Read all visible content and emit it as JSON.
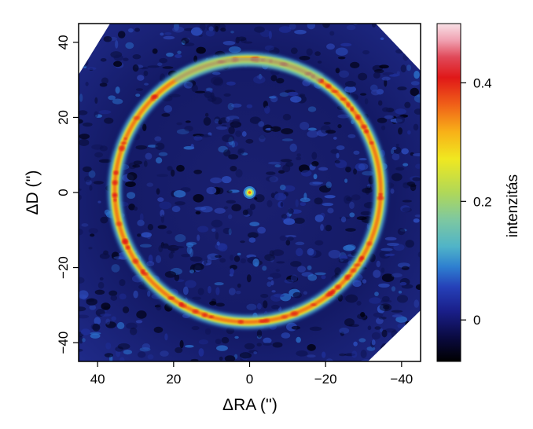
{
  "chart_data": {
    "type": "heatmap",
    "title": "",
    "xlabel": "ΔRA ('')",
    "ylabel": "ΔD ('')",
    "xlim": [
      45,
      -45
    ],
    "ylim": [
      -45,
      45
    ],
    "x_ticks": [
      40,
      20,
      0,
      -20,
      -40
    ],
    "x_tick_labels": [
      "40",
      "20",
      "0",
      "−20",
      "−40"
    ],
    "y_ticks": [
      40,
      20,
      0,
      -20,
      -40
    ],
    "y_tick_labels": [
      "40",
      "20",
      "0",
      "−20",
      "−40"
    ],
    "grid": false,
    "ring": {
      "center_ra": 0.5,
      "center_dec": 0.5,
      "radius_arcsec": 35.0,
      "peak_intensity": 0.45
    },
    "central_source": {
      "ra": 0,
      "dec": 0,
      "intensity": 0.3
    },
    "colorbar": {
      "label": "intenzitás",
      "range": [
        -0.07,
        0.5
      ],
      "ticks": [
        0,
        0.2,
        0.4
      ],
      "tick_labels": [
        "0",
        "0.2",
        "0.4"
      ],
      "colormap": [
        "#000000",
        "#0a0a40",
        "#1a1f8a",
        "#2540b8",
        "#2e7fd0",
        "#50b4c8",
        "#7ec8a0",
        "#b0d858",
        "#f0e820",
        "#f8b018",
        "#f06018",
        "#e01818",
        "#e04858",
        "#f0a0b0",
        "#f8e0e6"
      ]
    }
  }
}
